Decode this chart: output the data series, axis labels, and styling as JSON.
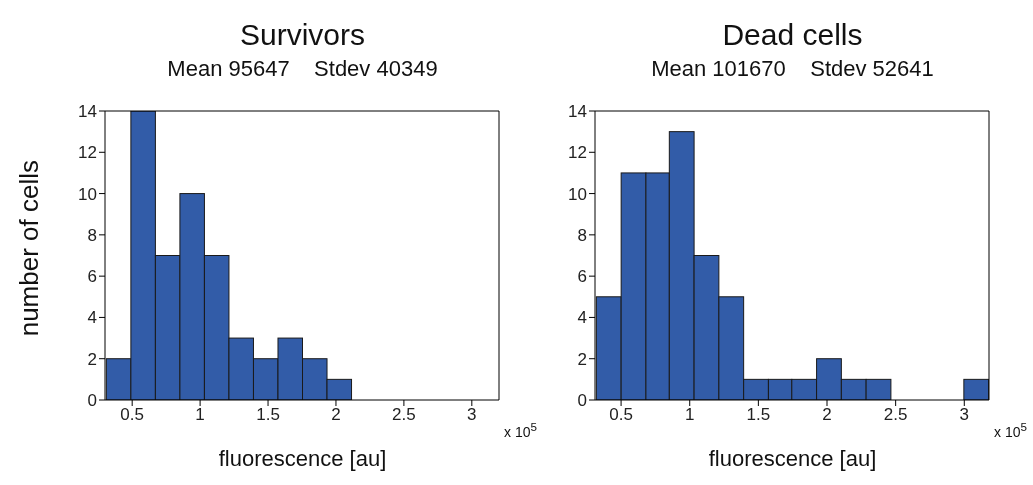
{
  "chart_data": [
    {
      "type": "histogram",
      "title": "Survivors",
      "subtitle": "Mean 95647    Stdev 40349",
      "xlabel": "fluorescence [au]",
      "ylabel": "number of cells",
      "annotations": [
        "x 10$^{5}$"
      ],
      "color": "#325ca8",
      "bins": [
        0.31,
        0.49,
        0.67,
        0.85,
        1.03,
        1.21,
        1.39,
        1.57,
        1.75,
        1.93,
        2.11
      ],
      "values": [
        2,
        14,
        7,
        10,
        7,
        3,
        2,
        3,
        2,
        1
      ],
      "xlim": [
        0.3,
        3.2
      ],
      "xticks": [
        0.5,
        1,
        1.5,
        2,
        2.5,
        3
      ],
      "ylim": [
        0,
        14
      ],
      "yticks": [
        0,
        2,
        4,
        6,
        8,
        10,
        12,
        14
      ]
    },
    {
      "type": "histogram",
      "title": "Dead cells",
      "subtitle": "Mean 101670    Stdev 52641",
      "xlabel": "fluorescence [au]",
      "annotations": [
        "x 10$^{5}$"
      ],
      "color": "#325ca8",
      "bins": [
        0.32,
        0.5,
        0.68,
        0.85,
        1.03,
        1.21,
        1.39,
        1.57,
        1.74,
        1.92,
        2.1,
        2.28,
        2.46,
        2.99,
        3.17
      ],
      "values": [
        5,
        11,
        11,
        13,
        7,
        5,
        1,
        1,
        1,
        2,
        1,
        1,
        0,
        1
      ],
      "xlim": [
        0.31,
        3.18
      ],
      "xticks": [
        0.5,
        1,
        1.5,
        2,
        2.5,
        3
      ],
      "ylim": [
        0,
        14
      ],
      "yticks": [
        0,
        2,
        4,
        6,
        8,
        10,
        12,
        14
      ]
    }
  ]
}
